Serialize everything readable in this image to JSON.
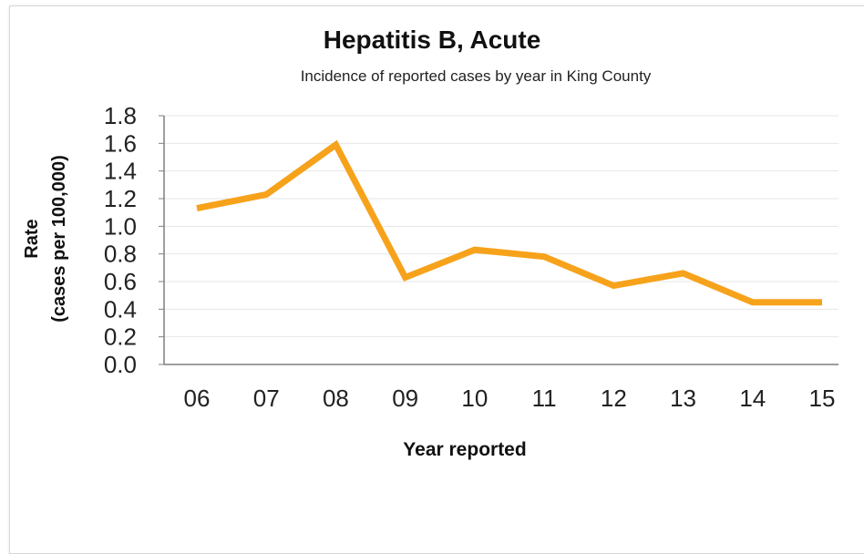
{
  "chart_data": {
    "type": "line",
    "title": "Hepatitis B, Acute",
    "subtitle": "Incidence of reported cases by year in King County",
    "xlabel": "Year reported",
    "ylabel_line1": "Rate",
    "ylabel_line2": "(cases per 100,000)",
    "categories": [
      "06",
      "07",
      "08",
      "09",
      "10",
      "11",
      "12",
      "13",
      "14",
      "15"
    ],
    "y_ticks": [
      "0.0",
      "0.2",
      "0.4",
      "0.6",
      "0.8",
      "1.0",
      "1.2",
      "1.4",
      "1.6",
      "1.8"
    ],
    "ylim": [
      0,
      1.8
    ],
    "grid": true,
    "series": [
      {
        "values": [
          1.13,
          1.23,
          1.59,
          0.63,
          0.83,
          0.78,
          0.57,
          0.66,
          0.45,
          0.45
        ]
      }
    ],
    "line_color": "#F7A21B",
    "grid_color": "#e6e6e6",
    "axis_color": "#7f7f7f"
  }
}
